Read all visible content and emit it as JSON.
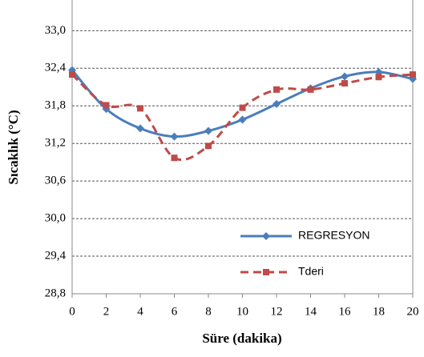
{
  "chart_data": {
    "type": "line",
    "x_label": "Süre (dakika)",
    "y_label": "Sıcaklık (°C)",
    "x": [
      0,
      2,
      4,
      6,
      8,
      10,
      12,
      14,
      16,
      18,
      20
    ],
    "series": [
      {
        "name": "REGRESYON",
        "color": "#4a7ebb",
        "dashed": false,
        "marker": "diamond",
        "values": [
          32.37,
          31.75,
          31.44,
          31.31,
          31.4,
          31.58,
          31.83,
          32.08,
          32.27,
          32.34,
          32.23
        ]
      },
      {
        "name": "Tderi",
        "color": "#be4b48",
        "dashed": true,
        "marker": "square",
        "values": [
          32.3,
          31.81,
          31.76,
          30.97,
          31.16,
          31.77,
          32.06,
          32.06,
          32.16,
          32.26,
          32.3
        ]
      }
    ],
    "xlim": [
      0,
      20
    ],
    "xticks": [
      0,
      2,
      4,
      6,
      8,
      10,
      12,
      14,
      16,
      18,
      20
    ],
    "ylim": [
      28.8,
      33.49
    ],
    "yticks": [
      {
        "value": 28.8,
        "label": "28,8"
      },
      {
        "value": 29.4,
        "label": "29,4"
      },
      {
        "value": 30,
        "label": "30,0"
      },
      {
        "value": 30.6,
        "label": "30,6"
      },
      {
        "value": 31.2,
        "label": "31,2"
      },
      {
        "value": 31.8,
        "label": "31,8"
      },
      {
        "value": 32.4,
        "label": "32,4"
      },
      {
        "value": 33,
        "label": "33,0"
      }
    ],
    "grid": true,
    "legend": "lower right"
  }
}
